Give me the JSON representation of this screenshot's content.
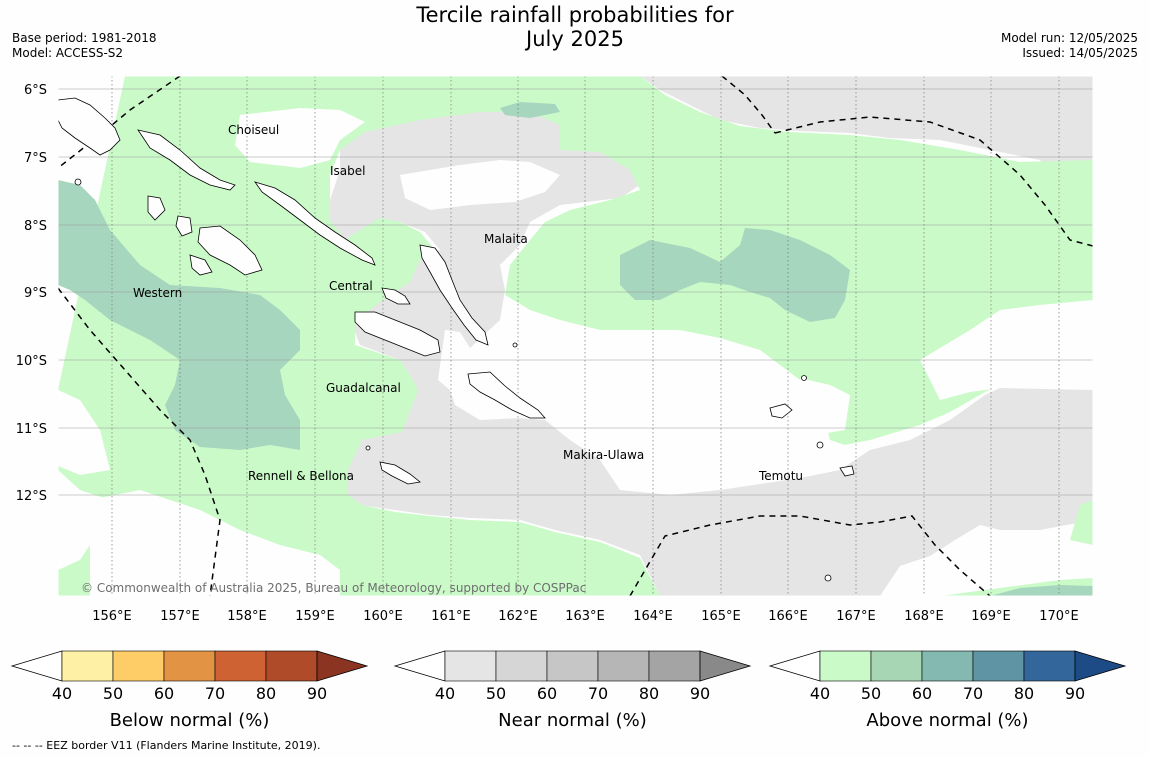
{
  "header": {
    "title_line1": "Tercile rainfall probabilities for",
    "title_line2": "July 2025",
    "base_period": "Base period: 1981-2018",
    "model": "Model: ACCESS-S2",
    "model_run": "Model run: 12/05/2025",
    "issued": "Issued: 14/05/2025"
  },
  "map": {
    "lat_labels": [
      "6°S",
      "7°S",
      "8°S",
      "9°S",
      "10°S",
      "11°S",
      "12°S"
    ],
    "lon_labels": [
      "156°E",
      "157°E",
      "158°E",
      "159°E",
      "160°E",
      "161°E",
      "162°E",
      "163°E",
      "164°E",
      "165°E",
      "166°E",
      "167°E",
      "168°E",
      "169°E",
      "170°E"
    ],
    "regions": [
      "Choiseul",
      "Isabel",
      "Malaita",
      "Western",
      "Central",
      "Guadalcanal",
      "Makira-Ulawa",
      "Rennell & Bellona",
      "Temotu"
    ],
    "copyright": "© Commonwealth of Australia 2025, Bureau of Meteorology, supported by COSPPac",
    "category_colors": {
      "above_50": "#cbfac9",
      "above_60": "#a6d6bd",
      "near_50": "#e5e5e5",
      "below_50": "#feeba0"
    }
  },
  "legends": [
    {
      "label": "Below normal (%)",
      "ticks": [
        "40",
        "50",
        "60",
        "70",
        "80",
        "90"
      ],
      "colors": [
        "#fef0a4",
        "#fecd67",
        "#e29444",
        "#cf6232",
        "#b04b2a",
        "#8c3422"
      ]
    },
    {
      "label": "Near normal (%)",
      "ticks": [
        "40",
        "50",
        "60",
        "70",
        "80",
        "90"
      ],
      "colors": [
        "#e5e5e5",
        "#d6d6d6",
        "#c6c6c6",
        "#b6b6b6",
        "#a4a4a4",
        "#898989"
      ]
    },
    {
      "label": "Above normal (%)",
      "ticks": [
        "40",
        "50",
        "60",
        "70",
        "80",
        "90"
      ],
      "colors": [
        "#cbfac9",
        "#a6d6b3",
        "#84b9b1",
        "#5e94a4",
        "#33679b",
        "#1d4b86"
      ]
    }
  ],
  "footer": {
    "eez_note": "--  --  -- EEZ border V11 (Flanders Marine Institute, 2019)."
  }
}
